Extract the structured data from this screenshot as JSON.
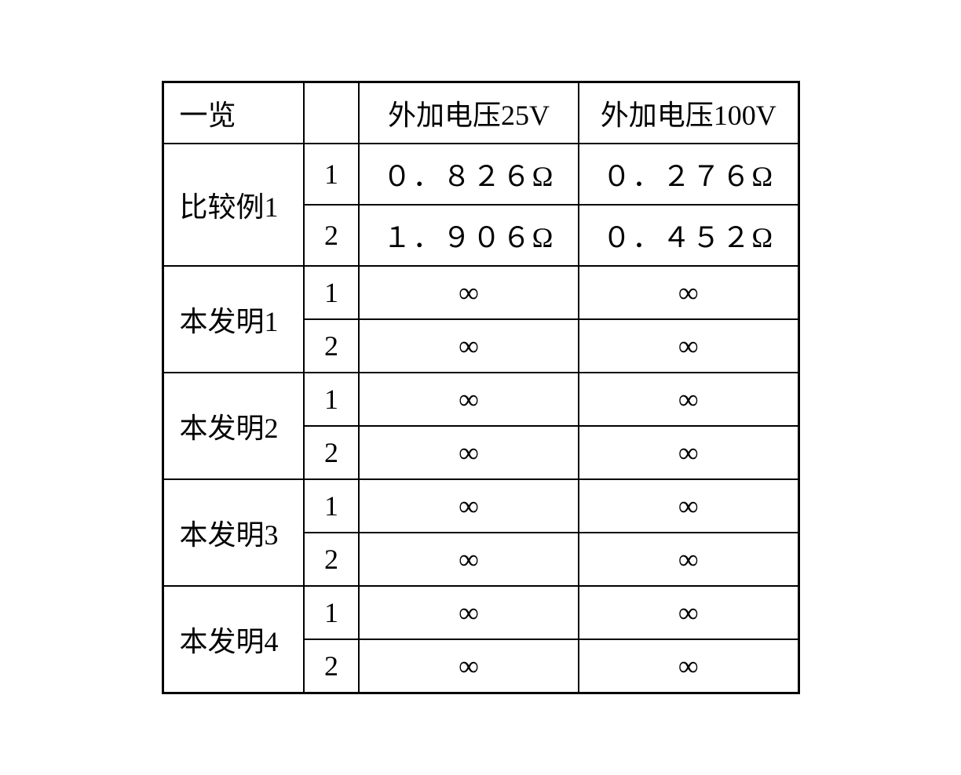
{
  "table": {
    "headers": {
      "overview": "一览",
      "num": "",
      "v25": "外加电压25V",
      "v100": "外加电压100V"
    },
    "groups": [
      {
        "label": "比较例1",
        "rows": [
          {
            "num": "1",
            "v25": "０．８２６Ω",
            "v100": "０．２７６Ω"
          },
          {
            "num": "2",
            "v25": "１．９０６Ω",
            "v100": "０．４５２Ω"
          }
        ]
      },
      {
        "label": "本发明1",
        "rows": [
          {
            "num": "1",
            "v25": "∞",
            "v100": "∞"
          },
          {
            "num": "2",
            "v25": "∞",
            "v100": "∞"
          }
        ]
      },
      {
        "label": "本发明2",
        "rows": [
          {
            "num": "1",
            "v25": "∞",
            "v100": "∞"
          },
          {
            "num": "2",
            "v25": "∞",
            "v100": "∞"
          }
        ]
      },
      {
        "label": "本发明3",
        "rows": [
          {
            "num": "1",
            "v25": "∞",
            "v100": "∞"
          },
          {
            "num": "2",
            "v25": "∞",
            "v100": "∞"
          }
        ]
      },
      {
        "label": "本发明4",
        "rows": [
          {
            "num": "1",
            "v25": "∞",
            "v100": "∞"
          },
          {
            "num": "2",
            "v25": "∞",
            "v100": "∞"
          }
        ]
      }
    ],
    "styling": {
      "border_color": "#000000",
      "border_width_outer": 3,
      "border_width_inner": 2,
      "background_color": "#ffffff",
      "text_color": "#000000",
      "font_size": 36,
      "font_family": "SimSun",
      "col_widths": {
        "label": 180,
        "num": 70,
        "v25": 280,
        "v100": 280
      },
      "cell_padding": "12px 16px",
      "label_align": "left",
      "data_align": "center"
    }
  }
}
